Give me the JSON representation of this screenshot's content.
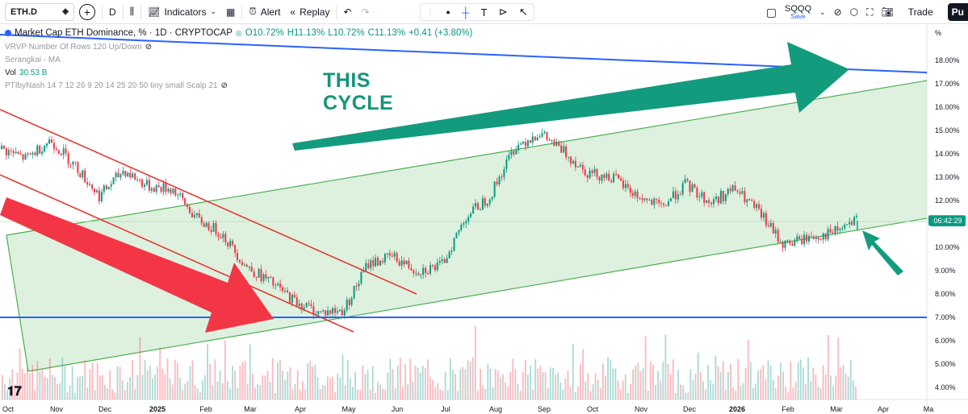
{
  "toolbar": {
    "symbol": "ETH.D",
    "interval": "D",
    "indicators_label": "Indicators",
    "alert_label": "Alert",
    "replay_label": "Replay",
    "compare_symbol": "SQQQ",
    "compare_sub": "Save",
    "trade_label": "Trade",
    "publish_label": "Pu"
  },
  "legend": {
    "title": "Market Cap ETH Dominance, % · 1D · CRYPTOCAP",
    "open": "O10.72%",
    "high": "H11.13%",
    "low": "L10.72%",
    "close": "C11.13%",
    "change": "+0.41 (+3.80%)",
    "indicators": [
      {
        "name": "VRVP Number Of Rows 120 Up/Down",
        "value": ""
      },
      {
        "name": "Serangkai - MA",
        "value": ""
      },
      {
        "name": "Vol",
        "value": "30.53 B"
      },
      {
        "name": "PTIbyNash 14 7 12 26 9 20 14 25 20 50 tiny small Scalp 21",
        "value": ""
      }
    ]
  },
  "annotation": {
    "line1": "THIS",
    "line2": "CYCLE"
  },
  "axis": {
    "unit": "%",
    "y_labels": [
      "18.00%",
      "17.00%",
      "16.00%",
      "15.00%",
      "14.00%",
      "13.00%",
      "12.00%",
      "11.00%",
      "10.00%",
      "9.00%",
      "8.00%",
      "7.00%",
      "6.00%",
      "5.00%",
      "4.00%"
    ],
    "x_labels": [
      "Oct",
      "Nov",
      "Dec",
      "2025",
      "Feb",
      "Mar",
      "Apr",
      "May",
      "Jun",
      "Jul",
      "Aug",
      "Sep",
      "Oct",
      "Nov",
      "Dec",
      "2026",
      "Feb",
      "Mar",
      "Apr",
      "Ma"
    ],
    "current_time": "06:42:29"
  },
  "colors": {
    "up": "#089981",
    "down": "#f23645",
    "channel_fill": "#d3ecd3",
    "channel_line": "#4caf50",
    "blue_line": "#2962ff",
    "red_channel": "#e53935",
    "arrow_green": "#139b7d",
    "arrow_red": "#f23645"
  },
  "chart_data": {
    "type": "candlestick",
    "title": "Market Cap ETH Dominance, %",
    "ylabel": "%",
    "ylim": [
      3.6,
      18.8
    ],
    "x": [
      "2024-10",
      "2024-11",
      "2024-12",
      "2025-01",
      "2025-02",
      "2025-03",
      "2025-04",
      "2025-05",
      "2025-06",
      "2025-07",
      "2025-08",
      "2025-09",
      "2025-10",
      "2025-11",
      "2025-12",
      "2026-01",
      "2026-02",
      "2026-03"
    ],
    "close_path": [
      14.2,
      13.8,
      14.6,
      13.5,
      12.2,
      13.3,
      12.6,
      12.5,
      11.2,
      10.6,
      9.2,
      8.5,
      7.7,
      7.2,
      7.3,
      9.3,
      9.6,
      9.0,
      9.2,
      11.3,
      12.2,
      14.3,
      14.9,
      14.1,
      13.2,
      13.0,
      12.2,
      11.7,
      12.7,
      11.9,
      12.5,
      11.5,
      10.1,
      10.4,
      10.6,
      11.13
    ],
    "last_close": 11.13
  }
}
